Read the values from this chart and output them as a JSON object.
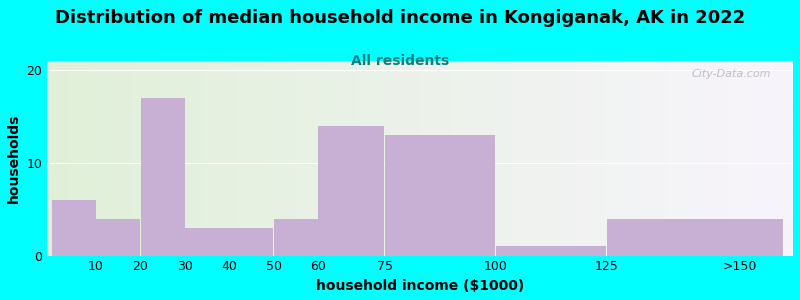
{
  "title": "Distribution of median household income in Kongiganak, AK in 2022",
  "subtitle": "All residents",
  "xlabel": "household income ($1000)",
  "ylabel": "households",
  "background_color": "#00FFFF",
  "bar_color": "#c8afd4",
  "values": [
    6,
    4,
    17,
    3,
    3,
    4,
    14,
    13,
    1,
    4
  ],
  "bar_lefts": [
    0,
    10,
    20,
    30,
    40,
    50,
    60,
    75,
    100,
    125
  ],
  "bar_rights": [
    10,
    20,
    30,
    40,
    50,
    60,
    75,
    100,
    125,
    165
  ],
  "ylim": [
    0,
    21
  ],
  "yticks": [
    0,
    10,
    20
  ],
  "xlim_min": -1,
  "xlim_max": 167,
  "xtick_positions": [
    10,
    20,
    30,
    40,
    50,
    60,
    75,
    100,
    125,
    155
  ],
  "xtick_labels": [
    "10",
    "20",
    "30",
    "40",
    "50",
    "60",
    "75",
    "100",
    "125",
    ">150"
  ],
  "title_fontsize": 13,
  "subtitle_fontsize": 10,
  "axis_label_fontsize": 10,
  "tick_fontsize": 9,
  "watermark_text": "City-Data.com",
  "gradient_left": "#e0f0d8",
  "gradient_right": "#f8f4fc"
}
